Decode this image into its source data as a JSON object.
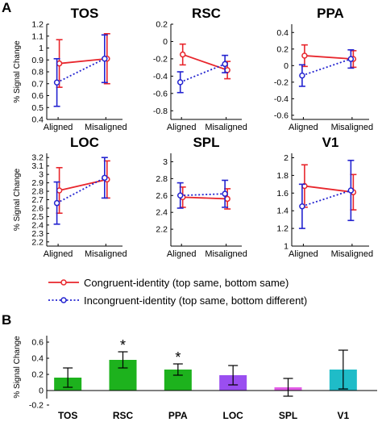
{
  "panel_labels": [
    "A",
    "B"
  ],
  "legend": {
    "congruent": "Congruent-identity (top same, bottom same)",
    "incongruent": "Incongruent-identity (top same, bottom different)"
  },
  "colors": {
    "congruent": "#e8262c",
    "incongruent": "#2323d0",
    "tos": "#1db21d",
    "rsc": "#1db21d",
    "ppa": "#1db21d",
    "loc": "#9a4ef0",
    "spl": "#e15ce6",
    "v1": "#1fbcc8"
  },
  "chart_data": [
    {
      "type": "line",
      "title": "TOS",
      "ylabel": "% Signal Change",
      "categories": [
        "Aligned",
        "Misaligned"
      ],
      "ylim": [
        0.4,
        1.2
      ],
      "yticks": [
        "0.4",
        "0.5",
        "0.6",
        "0.7",
        "0.8",
        "0.9",
        "1",
        "1.1",
        "1.2"
      ],
      "series": [
        {
          "key": "congruent",
          "values": [
            0.87,
            0.91
          ],
          "errors": [
            0.2,
            0.21
          ]
        },
        {
          "key": "incongruent",
          "values": [
            0.71,
            0.91
          ],
          "errors": [
            0.2,
            0.2
          ]
        }
      ]
    },
    {
      "type": "line",
      "title": "RSC",
      "ylabel": "",
      "categories": [
        "Aligned",
        "Misaligned"
      ],
      "ylim": [
        -0.9,
        0.2
      ],
      "yticks": [
        "-0.8",
        "-0.6",
        "-0.4",
        "-0.2",
        "0",
        "0.2"
      ],
      "series": [
        {
          "key": "congruent",
          "values": [
            -0.15,
            -0.33
          ],
          "errors": [
            0.12,
            0.1
          ]
        },
        {
          "key": "incongruent",
          "values": [
            -0.47,
            -0.26
          ],
          "errors": [
            0.12,
            0.1
          ]
        }
      ]
    },
    {
      "type": "line",
      "title": "PPA",
      "ylabel": "",
      "categories": [
        "Aligned",
        "Misaligned"
      ],
      "ylim": [
        -0.65,
        0.5
      ],
      "yticks": [
        "-0.6",
        "-0.4",
        "-0.2",
        "0",
        "0.2",
        "0.4"
      ],
      "series": [
        {
          "key": "congruent",
          "values": [
            0.12,
            0.08
          ],
          "errors": [
            0.13,
            0.1
          ]
        },
        {
          "key": "incongruent",
          "values": [
            -0.12,
            0.08
          ],
          "errors": [
            0.13,
            0.11
          ]
        }
      ]
    },
    {
      "type": "line",
      "title": "LOC",
      "ylabel": "% Signal Change",
      "categories": [
        "Aligned",
        "Misaligned"
      ],
      "ylim": [
        2.15,
        3.25
      ],
      "yticks": [
        "2.2",
        "2.3",
        "2.4",
        "2.5",
        "2.6",
        "2.7",
        "2.8",
        "2.9",
        "3",
        "3.1",
        "3.2"
      ],
      "series": [
        {
          "key": "congruent",
          "values": [
            2.81,
            2.94
          ],
          "errors": [
            0.27,
            0.22
          ]
        },
        {
          "key": "incongruent",
          "values": [
            2.66,
            2.96
          ],
          "errors": [
            0.25,
            0.24
          ]
        }
      ]
    },
    {
      "type": "line",
      "title": "SPL",
      "ylabel": "",
      "categories": [
        "Aligned",
        "Misaligned"
      ],
      "ylim": [
        2.0,
        3.1
      ],
      "yticks": [
        "2.2",
        "2.4",
        "2.6",
        "2.8",
        "3"
      ],
      "series": [
        {
          "key": "congruent",
          "values": [
            2.58,
            2.56
          ],
          "errors": [
            0.12,
            0.12
          ]
        },
        {
          "key": "incongruent",
          "values": [
            2.6,
            2.62
          ],
          "errors": [
            0.15,
            0.16
          ]
        }
      ]
    },
    {
      "type": "line",
      "title": "V1",
      "ylabel": "",
      "categories": [
        "Aligned",
        "Misaligned"
      ],
      "ylim": [
        1.0,
        2.05
      ],
      "yticks": [
        "1",
        "1.2",
        "1.4",
        "1.6",
        "1.8",
        "2"
      ],
      "series": [
        {
          "key": "congruent",
          "values": [
            1.68,
            1.61
          ],
          "errors": [
            0.24,
            0.2
          ]
        },
        {
          "key": "incongruent",
          "values": [
            1.45,
            1.63
          ],
          "errors": [
            0.25,
            0.34
          ]
        }
      ]
    },
    {
      "type": "bar",
      "title": "",
      "ylabel": "% Signal Change",
      "categories": [
        "TOS",
        "RSC",
        "PPA",
        "LOC",
        "SPL",
        "V1"
      ],
      "color_keys": [
        "tos",
        "rsc",
        "ppa",
        "loc",
        "spl",
        "v1"
      ],
      "values": [
        0.16,
        0.38,
        0.26,
        0.19,
        0.04,
        0.26
      ],
      "errors": [
        0.12,
        0.1,
        0.07,
        0.12,
        0.11,
        0.24
      ],
      "significant": [
        false,
        true,
        true,
        false,
        false,
        false
      ],
      "significance_marker": "*",
      "ylim": [
        -0.1,
        0.68
      ],
      "yticks": [
        "-0.2",
        "0",
        "0.2",
        "0.4",
        "0.6"
      ]
    }
  ]
}
